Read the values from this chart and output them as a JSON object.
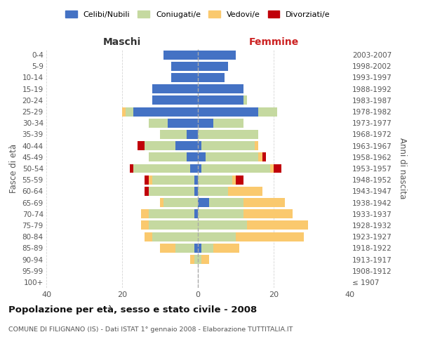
{
  "age_groups": [
    "100+",
    "95-99",
    "90-94",
    "85-89",
    "80-84",
    "75-79",
    "70-74",
    "65-69",
    "60-64",
    "55-59",
    "50-54",
    "45-49",
    "40-44",
    "35-39",
    "30-34",
    "25-29",
    "20-24",
    "15-19",
    "10-14",
    "5-9",
    "0-4"
  ],
  "birth_years": [
    "≤ 1907",
    "1908-1912",
    "1913-1917",
    "1918-1922",
    "1923-1927",
    "1928-1932",
    "1933-1937",
    "1938-1942",
    "1943-1947",
    "1948-1952",
    "1953-1957",
    "1958-1962",
    "1963-1967",
    "1968-1972",
    "1973-1977",
    "1978-1982",
    "1983-1987",
    "1988-1992",
    "1993-1997",
    "1998-2002",
    "2003-2007"
  ],
  "males": {
    "celibe": [
      0,
      0,
      0,
      1,
      0,
      0,
      1,
      0,
      1,
      1,
      2,
      3,
      6,
      3,
      8,
      17,
      12,
      12,
      7,
      7,
      9
    ],
    "coniugato": [
      0,
      0,
      1,
      5,
      12,
      13,
      12,
      9,
      12,
      11,
      15,
      10,
      8,
      7,
      5,
      2,
      0,
      0,
      0,
      0,
      0
    ],
    "vedovo": [
      0,
      0,
      1,
      4,
      2,
      2,
      2,
      1,
      0,
      1,
      0,
      0,
      0,
      0,
      0,
      1,
      0,
      0,
      0,
      0,
      0
    ],
    "divorziato": [
      0,
      0,
      0,
      0,
      0,
      0,
      0,
      0,
      1,
      1,
      1,
      0,
      2,
      0,
      0,
      0,
      0,
      0,
      0,
      0,
      0
    ]
  },
  "females": {
    "nubile": [
      0,
      0,
      0,
      1,
      0,
      0,
      0,
      3,
      0,
      0,
      1,
      2,
      1,
      0,
      4,
      16,
      12,
      12,
      7,
      8,
      10
    ],
    "coniugata": [
      0,
      0,
      1,
      3,
      10,
      13,
      12,
      9,
      8,
      9,
      18,
      14,
      14,
      16,
      8,
      5,
      1,
      0,
      0,
      0,
      0
    ],
    "vedova": [
      0,
      0,
      2,
      7,
      18,
      16,
      13,
      11,
      9,
      1,
      1,
      1,
      1,
      0,
      0,
      0,
      0,
      0,
      0,
      0,
      0
    ],
    "divorziata": [
      0,
      0,
      0,
      0,
      0,
      0,
      0,
      0,
      0,
      2,
      2,
      1,
      0,
      0,
      0,
      0,
      0,
      0,
      0,
      0,
      0
    ]
  },
  "color_celibe": "#4472c4",
  "color_coniugato": "#c5d9a0",
  "color_vedovo": "#fac96e",
  "color_divorziato": "#c0000a",
  "title": "Popolazione per età, sesso e stato civile - 2008",
  "subtitle": "COMUNE DI FILIGNANO (IS) - Dati ISTAT 1° gennaio 2008 - Elaborazione TUTTITALIA.IT",
  "xlabel_left": "Maschi",
  "xlabel_right": "Femmine",
  "ylabel_left": "Fasce di età",
  "ylabel_right": "Anni di nascita",
  "legend_labels": [
    "Celibi/Nubili",
    "Coniugati/e",
    "Vedovi/e",
    "Divorziati/e"
  ],
  "xlim": 40,
  "bg_color": "#ffffff",
  "grid_color": "#cccccc"
}
